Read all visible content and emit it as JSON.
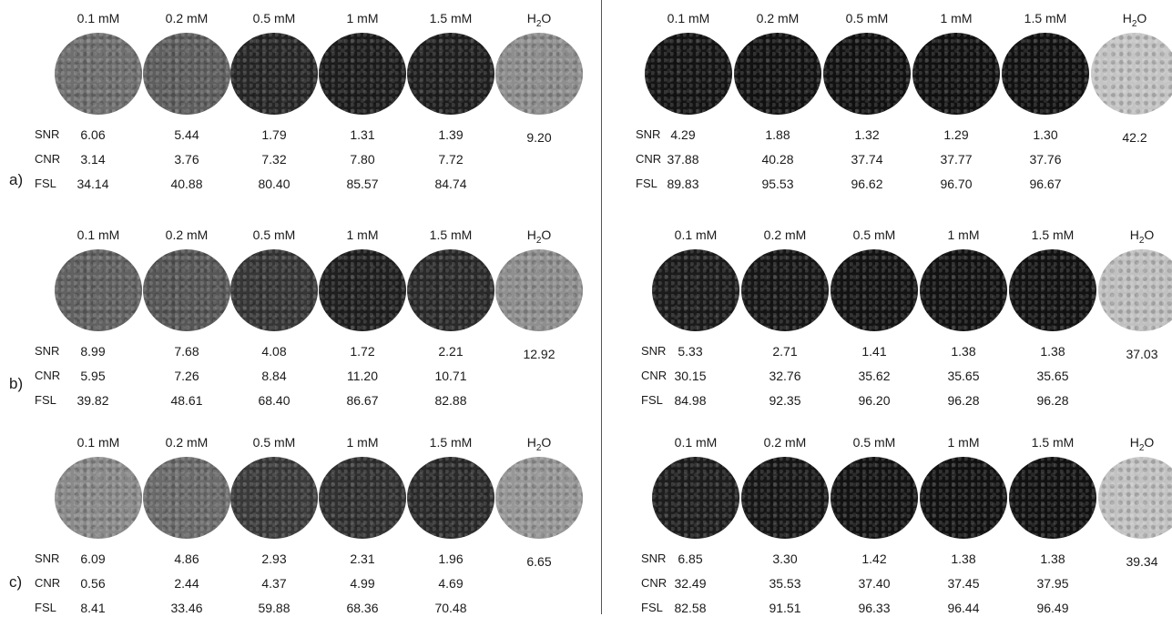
{
  "columns": [
    "0.1 mM",
    "0.2 mM",
    "0.5 mM",
    "1 mM",
    "1.5 mM",
    "H2O"
  ],
  "row_labels": [
    "a)",
    "b)",
    "c)"
  ],
  "metric_names": [
    "SNR",
    "CNR",
    "FSL"
  ],
  "panels": [
    {
      "row": "a",
      "side": "left",
      "disk_colors": [
        "#6f6f6f",
        "#5e5e5e",
        "#262626",
        "#1c1c1c",
        "#1e1e1e",
        "#8e8e8e"
      ],
      "SNR": [
        "6.06",
        "5.44",
        "1.79",
        "1.31",
        "1.39",
        "9.20"
      ],
      "CNR": [
        "3.14",
        "3.76",
        "7.32",
        "7.80",
        "7.72"
      ],
      "FSL": [
        "34.14",
        "40.88",
        "80.40",
        "85.57",
        "84.74"
      ]
    },
    {
      "row": "a",
      "side": "right",
      "disk_colors": [
        "#141414",
        "#121212",
        "#111111",
        "#111111",
        "#111111",
        "#c4c4c4"
      ],
      "SNR": [
        "4.29",
        "1.88",
        "1.32",
        "1.29",
        "1.30",
        "42.2"
      ],
      "CNR": [
        "37.88",
        "40.28",
        "37.74",
        "37.77",
        "37.76"
      ],
      "FSL": [
        "89.83",
        "95.53",
        "96.62",
        "96.70",
        "96.67"
      ]
    },
    {
      "row": "b",
      "side": "left",
      "disk_colors": [
        "#616161",
        "#565656",
        "#363636",
        "#1f1f1f",
        "#2a2a2a",
        "#8f8f8f"
      ],
      "SNR": [
        "8.99",
        "7.68",
        "4.08",
        "1.72",
        "2.21",
        "12.92"
      ],
      "CNR": [
        "5.95",
        "7.26",
        "8.84",
        "11.20",
        "10.71"
      ],
      "FSL": [
        "39.82",
        "48.61",
        "68.40",
        "86.67",
        "82.88"
      ]
    },
    {
      "row": "b",
      "side": "right",
      "disk_colors": [
        "#1b1b1b",
        "#161616",
        "#131313",
        "#121212",
        "#121212",
        "#c0c0c0"
      ],
      "SNR": [
        "5.33",
        "2.71",
        "1.41",
        "1.38",
        "1.38",
        "37.03"
      ],
      "CNR": [
        "30.15",
        "32.76",
        "35.62",
        "35.65",
        "35.65"
      ],
      "FSL": [
        "84.98",
        "92.35",
        "96.20",
        "96.28",
        "96.28"
      ]
    },
    {
      "row": "c",
      "side": "left",
      "disk_colors": [
        "#8a8a8a",
        "#6b6b6b",
        "#3a3a3a",
        "#303030",
        "#2a2a2a",
        "#979797"
      ],
      "SNR": [
        "6.09",
        "4.86",
        "2.93",
        "2.31",
        "1.96",
        "6.65"
      ],
      "CNR": [
        "0.56",
        "2.44",
        "4.37",
        "4.99",
        "4.69"
      ],
      "FSL": [
        "8.41",
        "33.46",
        "59.88",
        "68.36",
        "70.48"
      ]
    },
    {
      "row": "c",
      "side": "right",
      "disk_colors": [
        "#1d1d1d",
        "#161616",
        "#121212",
        "#111111",
        "#111111",
        "#c2c2c2"
      ],
      "SNR": [
        "6.85",
        "3.30",
        "1.42",
        "1.38",
        "1.38",
        "39.34"
      ],
      "CNR": [
        "32.49",
        "35.53",
        "37.40",
        "37.45",
        "37.95"
      ],
      "FSL": [
        "82.58",
        "91.51",
        "96.33",
        "96.44",
        "96.49"
      ]
    }
  ]
}
